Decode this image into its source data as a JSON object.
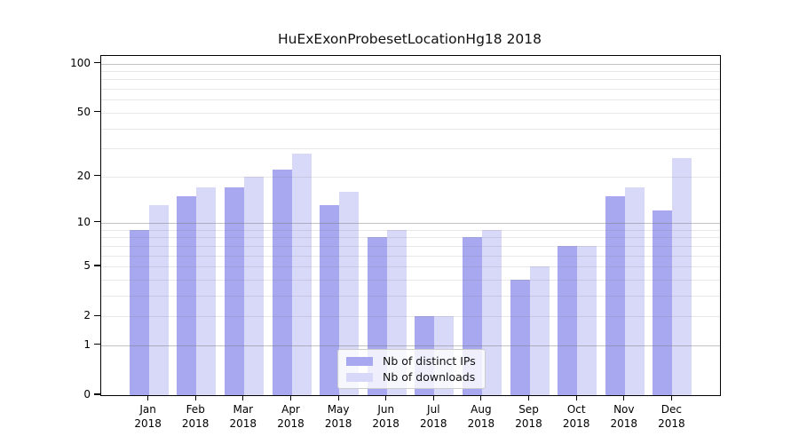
{
  "chart_data": {
    "type": "bar",
    "title": "HuExExonProbesetLocationHg18 2018",
    "categories": [
      "Jan",
      "Feb",
      "Mar",
      "Apr",
      "May",
      "Jun",
      "Jul",
      "Aug",
      "Sep",
      "Oct",
      "Nov",
      "Dec"
    ],
    "xtick_year": "2018",
    "series": [
      {
        "name": "Nb of distinct IPs",
        "color": "#a8a8f0",
        "values": [
          9,
          15,
          17,
          22,
          13,
          8,
          2,
          8,
          4,
          7,
          15,
          12
        ]
      },
      {
        "name": "Nb of downloads",
        "color": "#d8d8f8",
        "values": [
          13,
          17,
          20,
          28,
          16,
          9,
          2,
          9,
          5,
          7,
          17,
          26
        ]
      }
    ],
    "yscale": "log1p",
    "ylim": [
      0,
      112
    ],
    "yticks": [
      0,
      1,
      2,
      5,
      10,
      20,
      50,
      100
    ],
    "grid": {
      "major": [
        1,
        10,
        100
      ],
      "minor": [
        2,
        3,
        4,
        5,
        6,
        7,
        8,
        9,
        20,
        30,
        40,
        50,
        60,
        70,
        80,
        90
      ]
    },
    "legend_position": "lower-center"
  }
}
